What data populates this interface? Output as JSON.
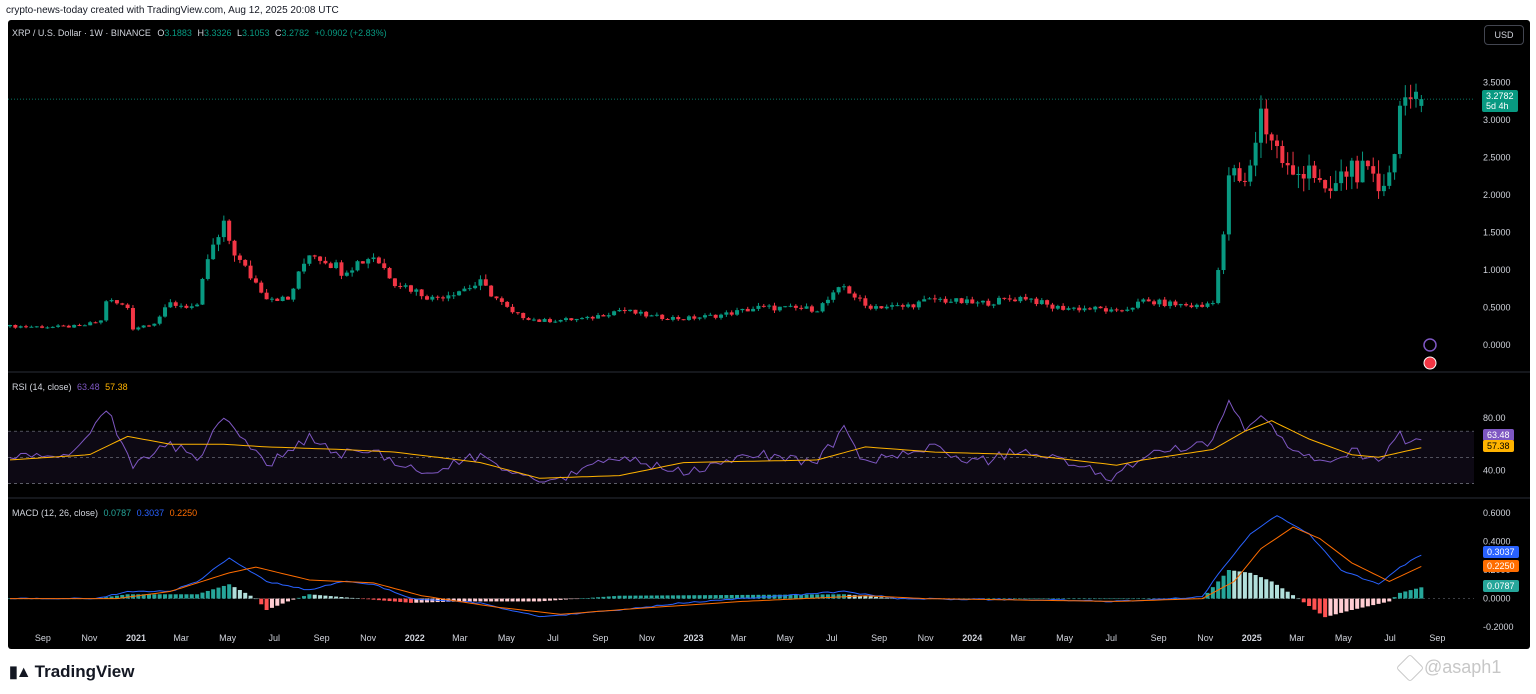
{
  "attribution": "crypto-news-today created with TradingView.com, Aug 12, 2025 20:08 UTC",
  "currency_button": "USD",
  "symbol_legend": {
    "title": "XRP / U.S. Dollar · 1W · BINANCE",
    "o_label": "O",
    "o_value": "3.1883",
    "h_label": "H",
    "h_value": "3.3326",
    "l_label": "L",
    "l_value": "3.1053",
    "c_label": "C",
    "c_value": "3.2782",
    "change": "+0.0902 (+2.83%)"
  },
  "rsi_legend": {
    "title": "RSI (14, close)",
    "rsi": "63.48",
    "ma": "57.38"
  },
  "macd_legend": {
    "title": "MACD (12, 26, close)",
    "hist": "0.0787",
    "macd": "0.3037",
    "signal": "0.2250"
  },
  "price_tag": {
    "price": "3.2782",
    "countdown": "5d 4h"
  },
  "colors": {
    "up": "#089981",
    "down": "#f23645",
    "rsi": "#7e57c2",
    "rsi_ma": "#ffb300",
    "macd": "#2962ff",
    "signal": "#ff6d00",
    "bg": "#000000"
  },
  "footer": {
    "logo": "TradingView",
    "watermark": "@asaph1"
  },
  "chart_data": [
    {
      "type": "candlestick",
      "title": "XRP / U.S. Dollar · 1W · BINANCE",
      "ylim": [
        -0.2,
        3.8
      ],
      "y_ticks": [
        "3.5000",
        "3.0000",
        "2.5000",
        "2.0000",
        "1.5000",
        "1.0000",
        "0.5000",
        "0.0000"
      ],
      "x_ticks": [
        "Sep",
        "Nov",
        "2021",
        "Mar",
        "May",
        "Jul",
        "Sep",
        "Nov",
        "2022",
        "Mar",
        "May",
        "Jul",
        "Sep",
        "Nov",
        "2023",
        "Mar",
        "May",
        "Jul",
        "Sep",
        "Nov",
        "2024",
        "Mar",
        "May",
        "Jul",
        "Sep",
        "Nov",
        "2025",
        "Mar",
        "May",
        "Jul",
        "Sep"
      ],
      "x_range": [
        "2020-07-20",
        "2025-09-28"
      ],
      "series": [
        {
          "name": "XRP",
          "anchors": [
            [
              "2020-07-20",
              0.25
            ],
            [
              "2020-09-15",
              0.24
            ],
            [
              "2020-10-20",
              0.25
            ],
            [
              "2020-11-16",
              0.32
            ],
            [
              "2020-11-23",
              0.6
            ],
            [
              "2020-12-21",
              0.5
            ],
            [
              "2020-12-28",
              0.22
            ],
            [
              "2021-01-25",
              0.3
            ],
            [
              "2021-02-15",
              0.55
            ],
            [
              "2021-03-22",
              0.5
            ],
            [
              "2021-04-05",
              1.15
            ],
            [
              "2021-04-26",
              1.55
            ],
            [
              "2021-05-17",
              1.1
            ],
            [
              "2021-06-21",
              0.65
            ],
            [
              "2021-07-19",
              0.6
            ],
            [
              "2021-08-16",
              1.25
            ],
            [
              "2021-09-06",
              1.15
            ],
            [
              "2021-09-27",
              1.0
            ],
            [
              "2021-11-08",
              1.2
            ],
            [
              "2021-12-06",
              0.85
            ],
            [
              "2022-01-24",
              0.62
            ],
            [
              "2022-03-28",
              0.82
            ],
            [
              "2022-05-09",
              0.42
            ],
            [
              "2022-06-13",
              0.32
            ],
            [
              "2022-08-15",
              0.35
            ],
            [
              "2022-09-26",
              0.47
            ],
            [
              "2022-11-07",
              0.38
            ],
            [
              "2022-12-19",
              0.35
            ],
            [
              "2023-02-06",
              0.4
            ],
            [
              "2023-03-27",
              0.5
            ],
            [
              "2023-06-12",
              0.48
            ],
            [
              "2023-07-17",
              0.78
            ],
            [
              "2023-08-14",
              0.52
            ],
            [
              "2023-10-02",
              0.51
            ],
            [
              "2023-11-13",
              0.61
            ],
            [
              "2024-01-08",
              0.55
            ],
            [
              "2024-03-11",
              0.64
            ],
            [
              "2024-04-15",
              0.5
            ],
            [
              "2024-06-17",
              0.48
            ],
            [
              "2024-07-08",
              0.43
            ],
            [
              "2024-08-12",
              0.58
            ],
            [
              "2024-10-28",
              0.51
            ],
            [
              "2024-11-11",
              0.6
            ],
            [
              "2024-11-25",
              1.4
            ],
            [
              "2024-12-02",
              2.3
            ],
            [
              "2024-12-23",
              2.1
            ],
            [
              "2025-01-13",
              3.1
            ],
            [
              "2025-02-03",
              2.6
            ],
            [
              "2025-02-24",
              2.2
            ],
            [
              "2025-03-17",
              2.45
            ],
            [
              "2025-04-07",
              1.95
            ],
            [
              "2025-05-12",
              2.4
            ],
            [
              "2025-06-16",
              2.1
            ],
            [
              "2025-07-07",
              2.5
            ],
            [
              "2025-07-14",
              3.45
            ],
            [
              "2025-07-28",
              3.05
            ],
            [
              "2025-08-11",
              3.2782
            ]
          ]
        }
      ]
    },
    {
      "type": "line",
      "title": "RSI (14, close)",
      "ylim": [
        25,
        100
      ],
      "y_ticks": [
        "80.00",
        "40.00"
      ],
      "series": [
        {
          "name": "RSI",
          "anchors": [
            [
              "2020-07-20",
              50
            ],
            [
              "2020-10-12",
              52
            ],
            [
              "2020-11-23",
              88
            ],
            [
              "2020-12-28",
              44
            ],
            [
              "2021-02-15",
              60
            ],
            [
              "2021-03-22",
              50
            ],
            [
              "2021-04-26",
              78
            ],
            [
              "2021-06-21",
              44
            ],
            [
              "2021-08-16",
              66
            ],
            [
              "2021-09-27",
              52
            ],
            [
              "2021-11-08",
              56
            ],
            [
              "2021-12-06",
              44
            ],
            [
              "2022-01-24",
              38
            ],
            [
              "2022-03-28",
              52
            ],
            [
              "2022-06-13",
              28
            ],
            [
              "2022-09-26",
              50
            ],
            [
              "2022-12-19",
              38
            ],
            [
              "2023-03-27",
              52
            ],
            [
              "2023-06-12",
              46
            ],
            [
              "2023-07-17",
              72
            ],
            [
              "2023-08-14",
              46
            ],
            [
              "2023-11-13",
              58
            ],
            [
              "2024-01-08",
              46
            ],
            [
              "2024-03-11",
              56
            ],
            [
              "2024-07-08",
              34
            ],
            [
              "2024-08-12",
              52
            ],
            [
              "2024-11-11",
              60
            ],
            [
              "2024-12-02",
              95
            ],
            [
              "2024-12-23",
              70
            ],
            [
              "2025-01-13",
              80
            ],
            [
              "2025-02-24",
              54
            ],
            [
              "2025-04-07",
              44
            ],
            [
              "2025-05-12",
              56
            ],
            [
              "2025-06-16",
              46
            ],
            [
              "2025-07-14",
              70
            ],
            [
              "2025-07-28",
              58
            ],
            [
              "2025-08-11",
              63.48
            ]
          ]
        },
        {
          "name": "RSI-based MA",
          "anchors": [
            [
              "2020-07-20",
              48
            ],
            [
              "2020-11-01",
              52
            ],
            [
              "2020-12-21",
              66
            ],
            [
              "2021-02-15",
              60
            ],
            [
              "2021-04-26",
              60
            ],
            [
              "2021-06-21",
              58
            ],
            [
              "2021-09-27",
              56
            ],
            [
              "2021-12-06",
              54
            ],
            [
              "2022-03-28",
              46
            ],
            [
              "2022-06-13",
              34
            ],
            [
              "2022-09-26",
              36
            ],
            [
              "2022-12-19",
              46
            ],
            [
              "2023-06-12",
              48
            ],
            [
              "2023-08-14",
              58
            ],
            [
              "2023-11-13",
              54
            ],
            [
              "2024-03-11",
              52
            ],
            [
              "2024-07-08",
              44
            ],
            [
              "2024-08-12",
              48
            ],
            [
              "2024-11-11",
              56
            ],
            [
              "2024-12-23",
              70
            ],
            [
              "2025-01-27",
              78
            ],
            [
              "2025-03-17",
              64
            ],
            [
              "2025-05-12",
              52
            ],
            [
              "2025-06-16",
              50
            ],
            [
              "2025-08-11",
              57.38
            ]
          ]
        }
      ]
    },
    {
      "type": "line",
      "title": "MACD (12, 26, close)",
      "ylim": [
        -0.22,
        0.62
      ],
      "y_ticks": [
        "0.6000",
        "0.4000",
        "0.2000",
        "0.0000",
        "-0.2000"
      ],
      "series": [
        {
          "name": "MACD",
          "anchors": [
            [
              "2020-07-20",
              0.0
            ],
            [
              "2020-11-09",
              0.0
            ],
            [
              "2020-12-21",
              0.05
            ],
            [
              "2021-02-15",
              0.05
            ],
            [
              "2021-03-22",
              0.12
            ],
            [
              "2021-05-03",
              0.28
            ],
            [
              "2021-06-21",
              0.12
            ],
            [
              "2021-08-16",
              0.06
            ],
            [
              "2021-09-27",
              0.12
            ],
            [
              "2021-11-08",
              0.1
            ],
            [
              "2021-12-27",
              0.0
            ],
            [
              "2022-03-28",
              -0.03
            ],
            [
              "2022-06-13",
              -0.13
            ],
            [
              "2022-09-26",
              -0.08
            ],
            [
              "2022-12-19",
              -0.03
            ],
            [
              "2023-07-17",
              0.05
            ],
            [
              "2023-09-25",
              0.0
            ],
            [
              "2024-04-15",
              -0.01
            ],
            [
              "2024-07-08",
              -0.02
            ],
            [
              "2024-10-28",
              0.01
            ],
            [
              "2024-11-25",
              0.22
            ],
            [
              "2024-12-30",
              0.45
            ],
            [
              "2025-02-03",
              0.58
            ],
            [
              "2025-03-17",
              0.45
            ],
            [
              "2025-04-28",
              0.2
            ],
            [
              "2025-06-16",
              0.1
            ],
            [
              "2025-07-14",
              0.22
            ],
            [
              "2025-08-11",
              0.3037
            ]
          ]
        },
        {
          "name": "Signal",
          "anchors": [
            [
              "2020-07-20",
              0.0
            ],
            [
              "2020-12-07",
              0.0
            ],
            [
              "2021-02-15",
              0.05
            ],
            [
              "2021-05-03",
              0.18
            ],
            [
              "2021-06-07",
              0.22
            ],
            [
              "2021-08-16",
              0.13
            ],
            [
              "2021-09-27",
              0.12
            ],
            [
              "2021-11-08",
              0.11
            ],
            [
              "2022-01-10",
              0.02
            ],
            [
              "2022-04-18",
              -0.06
            ],
            [
              "2022-07-11",
              -0.11
            ],
            [
              "2022-10-17",
              -0.07
            ],
            [
              "2023-03-06",
              -0.02
            ],
            [
              "2023-08-14",
              0.02
            ],
            [
              "2023-10-30",
              0.0
            ],
            [
              "2024-07-08",
              -0.02
            ],
            [
              "2024-10-28",
              0.0
            ],
            [
              "2024-12-09",
              0.12
            ],
            [
              "2025-01-13",
              0.35
            ],
            [
              "2025-02-24",
              0.5
            ],
            [
              "2025-03-31",
              0.42
            ],
            [
              "2025-05-12",
              0.25
            ],
            [
              "2025-06-30",
              0.12
            ],
            [
              "2025-08-11",
              0.225
            ]
          ]
        },
        {
          "name": "Histogram",
          "anchors": [
            [
              "2020-07-20",
              0.0
            ],
            [
              "2020-11-09",
              0.0
            ],
            [
              "2020-12-21",
              0.03
            ],
            [
              "2021-03-22",
              0.03
            ],
            [
              "2021-05-03",
              0.1
            ],
            [
              "2021-06-07",
              0.0
            ],
            [
              "2021-06-21",
              -0.08
            ],
            [
              "2021-07-19",
              -0.02
            ],
            [
              "2021-08-16",
              0.03
            ],
            [
              "2021-12-27",
              -0.03
            ],
            [
              "2022-02-28",
              -0.02
            ],
            [
              "2022-06-13",
              -0.02
            ],
            [
              "2022-09-26",
              0.02
            ],
            [
              "2023-07-17",
              0.03
            ],
            [
              "2023-09-25",
              0.0
            ],
            [
              "2024-10-28",
              0.0
            ],
            [
              "2024-12-02",
              0.2
            ],
            [
              "2024-12-30",
              0.18
            ],
            [
              "2025-01-27",
              0.12
            ],
            [
              "2025-03-03",
              0.0
            ],
            [
              "2025-04-07",
              -0.13
            ],
            [
              "2025-05-12",
              -0.08
            ],
            [
              "2025-06-30",
              -0.02
            ],
            [
              "2025-07-14",
              0.04
            ],
            [
              "2025-08-11",
              0.0787
            ]
          ]
        }
      ]
    }
  ]
}
